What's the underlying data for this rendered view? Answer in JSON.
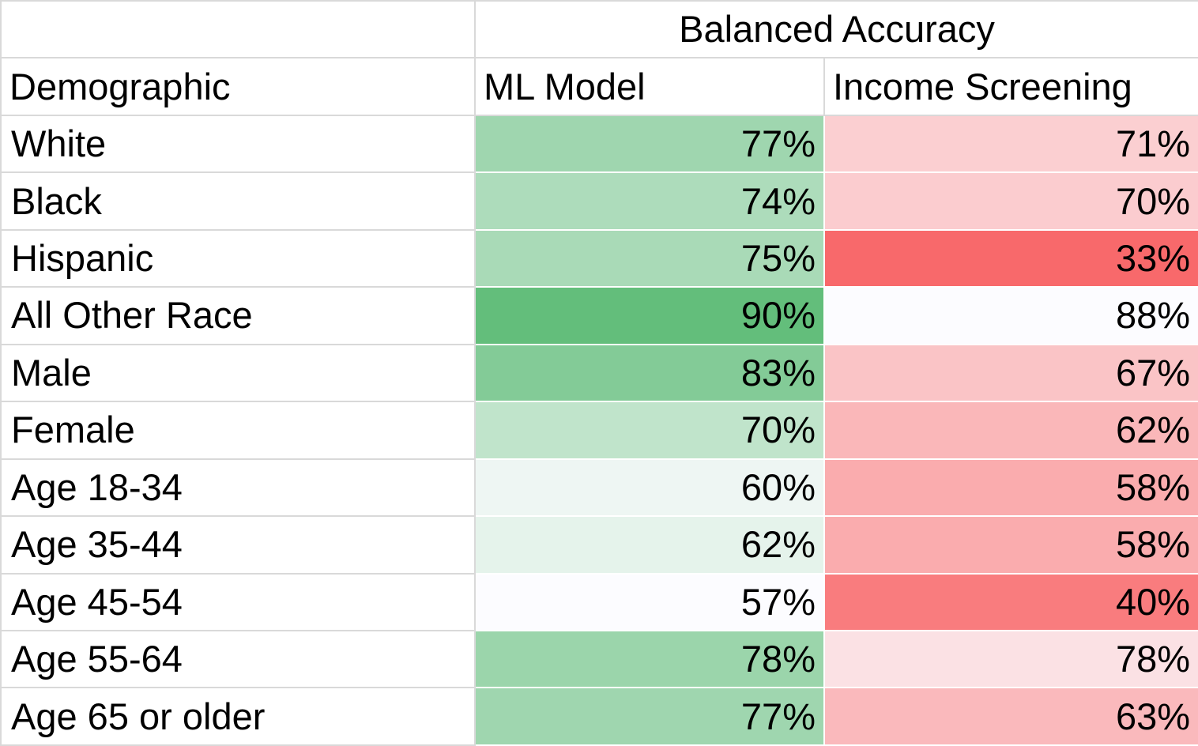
{
  "chart_data": {
    "type": "table",
    "title": "Balanced Accuracy",
    "row_header": "Demographic",
    "columns": [
      "ML Model",
      "Income Screening"
    ],
    "rows": [
      {
        "label": "White",
        "values": [
          "77%",
          "71%"
        ]
      },
      {
        "label": "Black",
        "values": [
          "74%",
          "70%"
        ]
      },
      {
        "label": "Hispanic",
        "values": [
          "75%",
          "33%"
        ]
      },
      {
        "label": "All Other Race",
        "values": [
          "90%",
          "88%"
        ]
      },
      {
        "label": "Male",
        "values": [
          "83%",
          "67%"
        ]
      },
      {
        "label": "Female",
        "values": [
          "70%",
          "62%"
        ]
      },
      {
        "label": "Age 18-34",
        "values": [
          "60%",
          "58%"
        ]
      },
      {
        "label": "Age 35-44",
        "values": [
          "62%",
          "58%"
        ]
      },
      {
        "label": "Age 45-54",
        "values": [
          "57%",
          "40%"
        ]
      },
      {
        "label": "Age 55-64",
        "values": [
          "78%",
          "78%"
        ]
      },
      {
        "label": "Age 65 or older",
        "values": [
          "77%",
          "63%"
        ]
      }
    ],
    "color_scales": [
      {
        "column": "ML Model",
        "low": "#fcfcff",
        "high": "#63be7b"
      },
      {
        "column": "Income Screening",
        "low": "#f8696b",
        "high": "#fcfcff"
      }
    ]
  }
}
